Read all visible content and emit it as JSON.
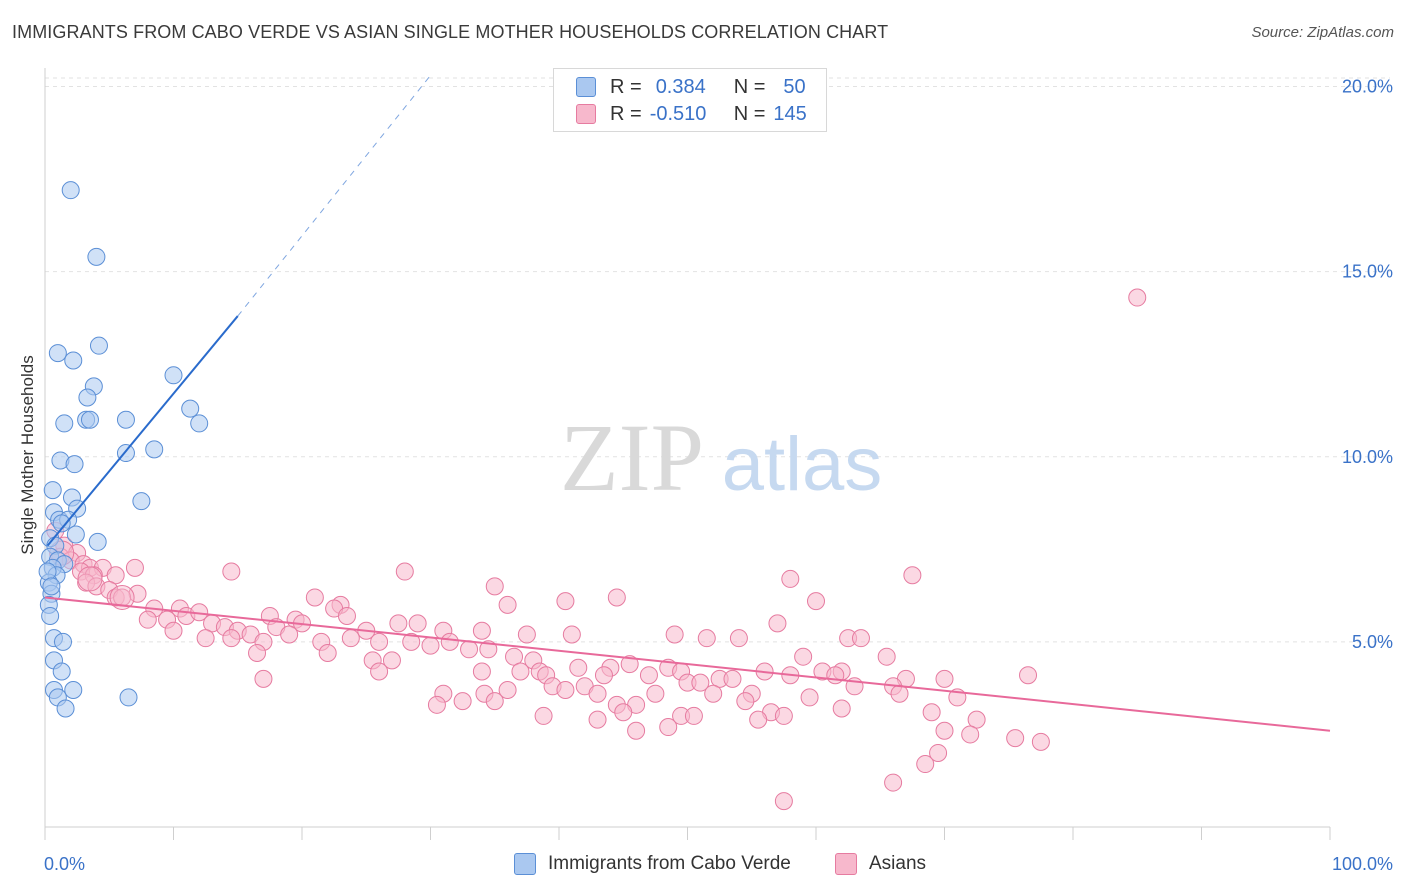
{
  "title": "IMMIGRANTS FROM CABO VERDE VS ASIAN SINGLE MOTHER HOUSEHOLDS CORRELATION CHART",
  "source": "Source: ZipAtlas.com",
  "watermark": {
    "zip": "ZIP",
    "atlas": "atlas"
  },
  "colors": {
    "blue_fill": "#aac8f0",
    "blue_stroke": "#5b8fd6",
    "blue_line": "#2a6bcc",
    "pink_fill": "#f7b8cc",
    "pink_stroke": "#e67ba0",
    "pink_line": "#e8699a",
    "axis_label": "#3a72c8",
    "grid": "#e2e2e2"
  },
  "legend": {
    "rows": [
      {
        "r_label": "R =",
        "r_value": "0.384",
        "n_label": "N =",
        "n_value": "50"
      },
      {
        "r_label": "R =",
        "r_value": "-0.510",
        "n_label": "N =",
        "n_value": "145"
      }
    ]
  },
  "bottom_legend": {
    "series1": "Immigrants from Cabo Verde",
    "series2": "Asians"
  },
  "chart_data": {
    "type": "scatter",
    "title": "IMMIGRANTS FROM CABO VERDE VS ASIAN SINGLE MOTHER HOUSEHOLDS CORRELATION CHART",
    "xlabel": "",
    "ylabel": "Single Mother Households",
    "xlim": [
      0,
      100
    ],
    "ylim": [
      0,
      20.5
    ],
    "x_tick_labels": [
      "0.0%",
      "100.0%"
    ],
    "y_ticks": [
      5,
      10,
      15,
      20
    ],
    "y_tick_labels": [
      "5.0%",
      "10.0%",
      "15.0%",
      "20.0%"
    ],
    "grid": true,
    "legend_placement": "top-center",
    "series": [
      {
        "name": "Immigrants from Cabo Verde",
        "r": 0.384,
        "n": 50,
        "trend": {
          "x0": 0.2,
          "y0": 7.6,
          "x1": 15.0,
          "y1": 13.8,
          "dash_x1": 30.0,
          "dash_y1": 20.3
        },
        "points": [
          [
            2.0,
            17.2
          ],
          [
            4.0,
            15.4
          ],
          [
            1.0,
            12.8
          ],
          [
            2.2,
            12.6
          ],
          [
            4.2,
            13.0
          ],
          [
            10.0,
            12.2
          ],
          [
            3.8,
            11.9
          ],
          [
            3.3,
            11.6
          ],
          [
            3.2,
            11.0
          ],
          [
            3.5,
            11.0
          ],
          [
            6.3,
            11.0
          ],
          [
            11.3,
            11.3
          ],
          [
            12.0,
            10.9
          ],
          [
            1.5,
            10.9
          ],
          [
            6.3,
            10.1
          ],
          [
            8.5,
            10.2
          ],
          [
            1.2,
            9.9
          ],
          [
            2.3,
            9.8
          ],
          [
            0.6,
            9.1
          ],
          [
            2.1,
            8.9
          ],
          [
            2.5,
            8.6
          ],
          [
            7.5,
            8.8
          ],
          [
            0.7,
            8.5
          ],
          [
            1.1,
            8.3
          ],
          [
            1.8,
            8.3
          ],
          [
            1.3,
            8.2
          ],
          [
            2.4,
            7.9
          ],
          [
            0.4,
            7.8
          ],
          [
            4.1,
            7.7
          ],
          [
            0.8,
            7.6
          ],
          [
            0.4,
            7.3
          ],
          [
            1.0,
            7.2
          ],
          [
            1.5,
            7.1
          ],
          [
            0.6,
            7.0
          ],
          [
            0.9,
            6.8
          ],
          [
            0.3,
            6.6
          ],
          [
            0.5,
            6.3
          ],
          [
            0.3,
            6.0
          ],
          [
            0.4,
            5.7
          ],
          [
            0.7,
            5.1
          ],
          [
            1.4,
            5.0
          ],
          [
            0.7,
            4.5
          ],
          [
            1.3,
            4.2
          ],
          [
            0.7,
            3.7
          ],
          [
            1.0,
            3.5
          ],
          [
            2.2,
            3.7
          ],
          [
            1.6,
            3.2
          ],
          [
            6.5,
            3.5
          ],
          [
            0.2,
            6.9
          ],
          [
            0.5,
            6.5
          ]
        ]
      },
      {
        "name": "Asians",
        "r": -0.51,
        "n": 145,
        "trend": {
          "x0": 0.0,
          "y0": 6.2,
          "x1": 100.0,
          "y1": 2.6
        },
        "points": [
          [
            85.0,
            14.3
          ],
          [
            0.8,
            8.0
          ],
          [
            1.5,
            7.6
          ],
          [
            2.5,
            7.4
          ],
          [
            1.2,
            7.3
          ],
          [
            2.0,
            7.2
          ],
          [
            3.0,
            7.1
          ],
          [
            3.5,
            7.0
          ],
          [
            4.5,
            7.0
          ],
          [
            7.0,
            7.0
          ],
          [
            2.8,
            6.9
          ],
          [
            3.8,
            6.8
          ],
          [
            5.5,
            6.8
          ],
          [
            14.5,
            6.9
          ],
          [
            28.0,
            6.9
          ],
          [
            58.0,
            6.7
          ],
          [
            67.5,
            6.8
          ],
          [
            3.2,
            6.6
          ],
          [
            4.0,
            6.5
          ],
          [
            5.0,
            6.4
          ],
          [
            7.2,
            6.3
          ],
          [
            5.5,
            6.2
          ],
          [
            6.0,
            6.2
          ],
          [
            21.0,
            6.2
          ],
          [
            23.0,
            6.0
          ],
          [
            35.0,
            6.5
          ],
          [
            36.0,
            6.0
          ],
          [
            40.5,
            6.1
          ],
          [
            44.5,
            6.2
          ],
          [
            60.0,
            6.1
          ],
          [
            8.5,
            5.9
          ],
          [
            10.5,
            5.9
          ],
          [
            11.0,
            5.7
          ],
          [
            12.0,
            5.8
          ],
          [
            17.5,
            5.7
          ],
          [
            22.5,
            5.9
          ],
          [
            23.5,
            5.7
          ],
          [
            19.5,
            5.6
          ],
          [
            8.0,
            5.6
          ],
          [
            9.5,
            5.6
          ],
          [
            13.0,
            5.5
          ],
          [
            14.0,
            5.4
          ],
          [
            15.0,
            5.3
          ],
          [
            16.0,
            5.2
          ],
          [
            18.0,
            5.4
          ],
          [
            20.0,
            5.5
          ],
          [
            25.0,
            5.3
          ],
          [
            27.5,
            5.5
          ],
          [
            29.0,
            5.5
          ],
          [
            31.0,
            5.3
          ],
          [
            34.0,
            5.3
          ],
          [
            37.5,
            5.2
          ],
          [
            41.0,
            5.2
          ],
          [
            49.0,
            5.2
          ],
          [
            51.5,
            5.1
          ],
          [
            54.0,
            5.1
          ],
          [
            57.0,
            5.5
          ],
          [
            62.5,
            5.1
          ],
          [
            63.5,
            5.1
          ],
          [
            10.0,
            5.3
          ],
          [
            12.5,
            5.1
          ],
          [
            14.5,
            5.1
          ],
          [
            17.0,
            5.0
          ],
          [
            19.0,
            5.2
          ],
          [
            21.5,
            5.0
          ],
          [
            23.8,
            5.1
          ],
          [
            26.0,
            5.0
          ],
          [
            28.5,
            5.0
          ],
          [
            30.0,
            4.9
          ],
          [
            31.5,
            5.0
          ],
          [
            33.0,
            4.8
          ],
          [
            34.5,
            4.8
          ],
          [
            36.5,
            4.6
          ],
          [
            16.5,
            4.7
          ],
          [
            22.0,
            4.7
          ],
          [
            25.5,
            4.5
          ],
          [
            27.0,
            4.5
          ],
          [
            38.0,
            4.5
          ],
          [
            59.0,
            4.6
          ],
          [
            65.5,
            4.6
          ],
          [
            41.5,
            4.3
          ],
          [
            44.0,
            4.3
          ],
          [
            45.5,
            4.4
          ],
          [
            48.5,
            4.3
          ],
          [
            49.5,
            4.2
          ],
          [
            56.0,
            4.2
          ],
          [
            60.5,
            4.2
          ],
          [
            62.0,
            4.2
          ],
          [
            17.0,
            4.0
          ],
          [
            26.0,
            4.2
          ],
          [
            34.0,
            4.2
          ],
          [
            37.0,
            4.2
          ],
          [
            38.5,
            4.2
          ],
          [
            39.0,
            4.1
          ],
          [
            43.5,
            4.1
          ],
          [
            47.0,
            4.1
          ],
          [
            52.5,
            4.0
          ],
          [
            53.5,
            4.0
          ],
          [
            58.0,
            4.1
          ],
          [
            61.5,
            4.1
          ],
          [
            67.0,
            4.0
          ],
          [
            70.0,
            4.0
          ],
          [
            76.5,
            4.1
          ],
          [
            50.0,
            3.9
          ],
          [
            51.0,
            3.9
          ],
          [
            63.0,
            3.8
          ],
          [
            66.0,
            3.8
          ],
          [
            31.0,
            3.6
          ],
          [
            34.2,
            3.6
          ],
          [
            36.0,
            3.7
          ],
          [
            39.5,
            3.8
          ],
          [
            40.5,
            3.7
          ],
          [
            42.0,
            3.8
          ],
          [
            43.0,
            3.6
          ],
          [
            47.5,
            3.6
          ],
          [
            52.0,
            3.6
          ],
          [
            55.0,
            3.6
          ],
          [
            59.5,
            3.5
          ],
          [
            66.5,
            3.6
          ],
          [
            71.0,
            3.5
          ],
          [
            32.5,
            3.4
          ],
          [
            35.0,
            3.4
          ],
          [
            44.5,
            3.3
          ],
          [
            46.0,
            3.3
          ],
          [
            54.5,
            3.4
          ],
          [
            56.5,
            3.1
          ],
          [
            62.0,
            3.2
          ],
          [
            69.0,
            3.1
          ],
          [
            38.8,
            3.0
          ],
          [
            45.0,
            3.1
          ],
          [
            49.5,
            3.0
          ],
          [
            50.5,
            3.0
          ],
          [
            55.5,
            2.9
          ],
          [
            57.5,
            3.0
          ],
          [
            72.5,
            2.9
          ],
          [
            43.0,
            2.9
          ],
          [
            48.5,
            2.7
          ],
          [
            30.5,
            3.3
          ],
          [
            46.0,
            2.6
          ],
          [
            70.0,
            2.6
          ],
          [
            72.0,
            2.5
          ],
          [
            75.5,
            2.4
          ],
          [
            77.5,
            2.3
          ],
          [
            69.5,
            2.0
          ],
          [
            68.5,
            1.7
          ],
          [
            66.0,
            1.2
          ],
          [
            57.5,
            0.7
          ]
        ]
      }
    ]
  }
}
